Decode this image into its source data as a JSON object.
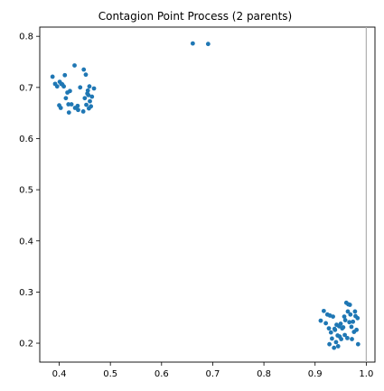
{
  "chart_data": {
    "type": "scatter",
    "title": "Contagion Point Process (2 parents)",
    "xlabel": "",
    "ylabel": "",
    "xlim": [
      0.362,
      1.017
    ],
    "ylim": [
      0.163,
      0.818
    ],
    "x_ticks": [
      0.4,
      0.5,
      0.6,
      0.7,
      0.8,
      0.9,
      1.0
    ],
    "x_tick_labels": [
      "0.4",
      "0.5",
      "0.6",
      "0.7",
      "0.8",
      "0.9",
      "1.0"
    ],
    "y_ticks": [
      0.2,
      0.3,
      0.4,
      0.5,
      0.6,
      0.7,
      0.8
    ],
    "y_tick_labels": [
      "0.2",
      "0.3",
      "0.4",
      "0.5",
      "0.6",
      "0.7",
      "0.8"
    ],
    "grid": false,
    "legend": "none",
    "reference_line": {
      "x": 1.0,
      "color": "#b0b0b0"
    },
    "marker_color": "#1f77b4",
    "series": [
      {
        "points": [
          [
            0.387,
            0.721
          ],
          [
            0.392,
            0.707
          ],
          [
            0.396,
            0.702
          ],
          [
            0.401,
            0.711
          ],
          [
            0.404,
            0.707
          ],
          [
            0.406,
            0.706
          ],
          [
            0.409,
            0.702
          ],
          [
            0.411,
            0.724
          ],
          [
            0.413,
            0.679
          ],
          [
            0.416,
            0.69
          ],
          [
            0.418,
            0.667
          ],
          [
            0.421,
            0.693
          ],
          [
            0.4,
            0.665
          ],
          [
            0.403,
            0.66
          ],
          [
            0.419,
            0.651
          ],
          [
            0.424,
            0.667
          ],
          [
            0.431,
            0.66
          ],
          [
            0.43,
            0.743
          ],
          [
            0.436,
            0.664
          ],
          [
            0.437,
            0.656
          ],
          [
            0.441,
            0.7
          ],
          [
            0.448,
            0.735
          ],
          [
            0.452,
            0.725
          ],
          [
            0.45,
            0.679
          ],
          [
            0.453,
            0.666
          ],
          [
            0.455,
            0.688
          ],
          [
            0.456,
            0.694
          ],
          [
            0.457,
            0.685
          ],
          [
            0.459,
            0.702
          ],
          [
            0.46,
            0.673
          ],
          [
            0.447,
            0.653
          ],
          [
            0.458,
            0.659
          ],
          [
            0.462,
            0.663
          ],
          [
            0.464,
            0.682
          ],
          [
            0.468,
            0.698
          ]
        ]
      },
      {
        "points": [
          [
            0.661,
            0.786
          ],
          [
            0.691,
            0.785
          ]
        ]
      },
      {
        "points": [
          [
            0.911,
            0.244
          ],
          [
            0.917,
            0.263
          ],
          [
            0.921,
            0.239
          ],
          [
            0.924,
            0.256
          ],
          [
            0.927,
            0.229
          ],
          [
            0.928,
            0.198
          ],
          [
            0.929,
            0.254
          ],
          [
            0.931,
            0.221
          ],
          [
            0.933,
            0.209
          ],
          [
            0.935,
            0.252
          ],
          [
            0.937,
            0.191
          ],
          [
            0.938,
            0.228
          ],
          [
            0.939,
            0.226
          ],
          [
            0.941,
            0.202
          ],
          [
            0.942,
            0.236
          ],
          [
            0.944,
            0.215
          ],
          [
            0.945,
            0.194
          ],
          [
            0.947,
            0.233
          ],
          [
            0.948,
            0.213
          ],
          [
            0.95,
            0.238
          ],
          [
            0.951,
            0.208
          ],
          [
            0.953,
            0.229
          ],
          [
            0.955,
            0.231
          ],
          [
            0.957,
            0.252
          ],
          [
            0.958,
            0.216
          ],
          [
            0.959,
            0.245
          ],
          [
            0.961,
            0.279
          ],
          [
            0.963,
            0.21
          ],
          [
            0.964,
            0.262
          ],
          [
            0.965,
            0.276
          ],
          [
            0.967,
            0.241
          ],
          [
            0.968,
            0.275
          ],
          [
            0.969,
            0.256
          ],
          [
            0.971,
            0.232
          ],
          [
            0.972,
            0.208
          ],
          [
            0.974,
            0.242
          ],
          [
            0.976,
            0.222
          ],
          [
            0.978,
            0.262
          ],
          [
            0.979,
            0.253
          ],
          [
            0.981,
            0.226
          ],
          [
            0.983,
            0.249
          ],
          [
            0.984,
            0.198
          ]
        ]
      }
    ]
  }
}
